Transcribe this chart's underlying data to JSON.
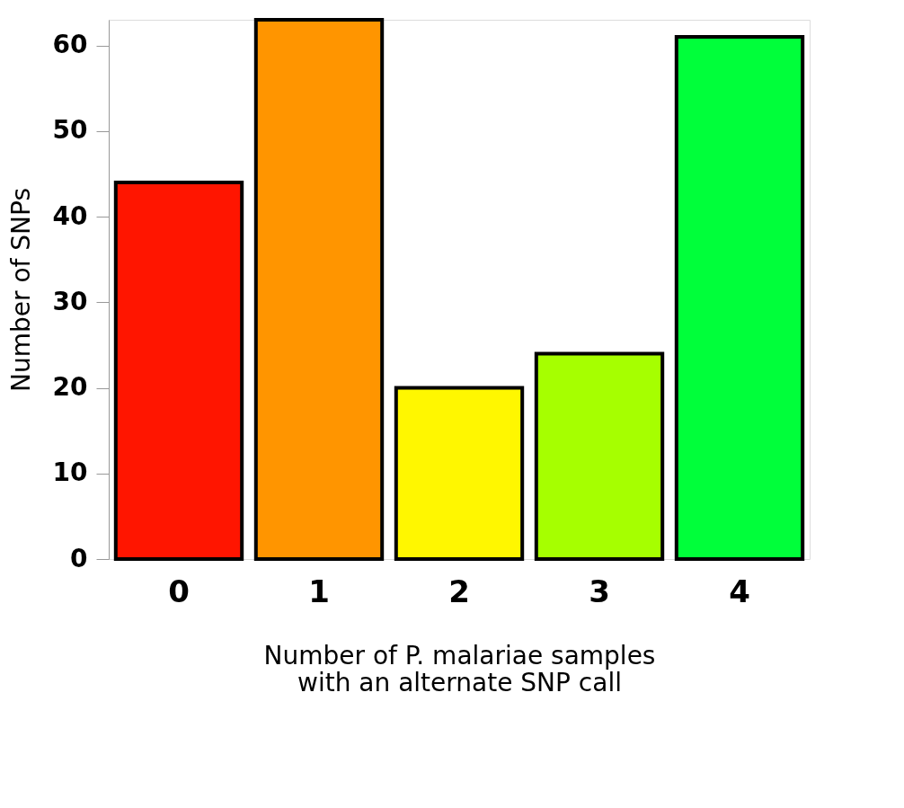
{
  "chart_data": {
    "type": "bar",
    "xlabel": "Number of P. malariae samples\nwith an alternate SNP call",
    "ylabel": "Number of SNPs",
    "categories": [
      "0",
      "1",
      "2",
      "3",
      "4"
    ],
    "values": [
      44,
      63,
      20,
      24,
      61
    ],
    "colors": [
      "#ff1500",
      "#ff9500",
      "#fff700",
      "#a6ff00",
      "#00ff3a"
    ],
    "ylim": [
      0,
      63
    ],
    "yticks": [
      0,
      10,
      20,
      30,
      40,
      50,
      60
    ],
    "grid": false
  }
}
